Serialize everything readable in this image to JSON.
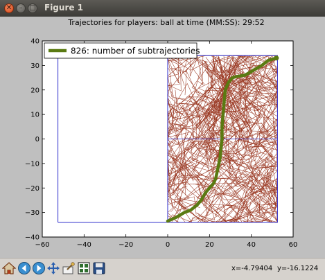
{
  "window": {
    "title": "Figure 1"
  },
  "chart_data": {
    "type": "line",
    "title": "Trajectories for players:  ball at time (MM:SS): 29:52",
    "xlim": [
      -60,
      60
    ],
    "ylim": [
      -40,
      40
    ],
    "xticks": [
      -60,
      -40,
      -20,
      0,
      20,
      40,
      60
    ],
    "yticks": [
      -40,
      -30,
      -20,
      -10,
      0,
      10,
      20,
      30,
      40
    ],
    "xtick_labels": [
      "−60",
      "−40",
      "−20",
      "0",
      "20",
      "40",
      "60"
    ],
    "ytick_labels": [
      "−40",
      "−30",
      "−20",
      "−10",
      "0",
      "10",
      "20",
      "30",
      "40"
    ],
    "legend": {
      "label": "826: number of subtrajectories",
      "position": "top-left"
    },
    "colors": {
      "trajectories": "#8b1a00",
      "pitch_lines": "#2b2bcc",
      "highlight": "#5a7a12"
    },
    "pitch": {
      "outer": [
        [
          -52.5,
          -34
        ],
        [
          52.5,
          -34
        ],
        [
          52.5,
          34
        ],
        [
          -52.5,
          34
        ],
        [
          -52.5,
          -34
        ]
      ],
      "halfway": [
        [
          0,
          -34
        ],
        [
          0,
          34
        ]
      ],
      "centre_line": [
        [
          0,
          0
        ],
        [
          52.5,
          0
        ]
      ]
    },
    "highlight_path": [
      [
        0,
        -33.5
      ],
      [
        4,
        -32
      ],
      [
        8,
        -30
      ],
      [
        11,
        -29
      ],
      [
        14,
        -27
      ],
      [
        16,
        -25
      ],
      [
        18,
        -22
      ],
      [
        20,
        -20
      ],
      [
        22,
        -18
      ],
      [
        23,
        -16
      ],
      [
        24,
        -12
      ],
      [
        25,
        -8
      ],
      [
        25.5,
        -4
      ],
      [
        26,
        0
      ],
      [
        26,
        5
      ],
      [
        26.5,
        10
      ],
      [
        27,
        15
      ],
      [
        27.5,
        20
      ],
      [
        29,
        23
      ],
      [
        31,
        25
      ],
      [
        33,
        25.5
      ],
      [
        37,
        26
      ],
      [
        41,
        28
      ],
      [
        45,
        30
      ],
      [
        48,
        32
      ],
      [
        50,
        32.5
      ],
      [
        52,
        33
      ]
    ]
  },
  "toolbar": {
    "icons": [
      "home-icon",
      "back-icon",
      "forward-icon",
      "pan-icon",
      "zoom-icon",
      "subplots-icon",
      "save-icon"
    ],
    "x_readout": "x=-4.79404",
    "y_readout": "y=-16.1224"
  }
}
